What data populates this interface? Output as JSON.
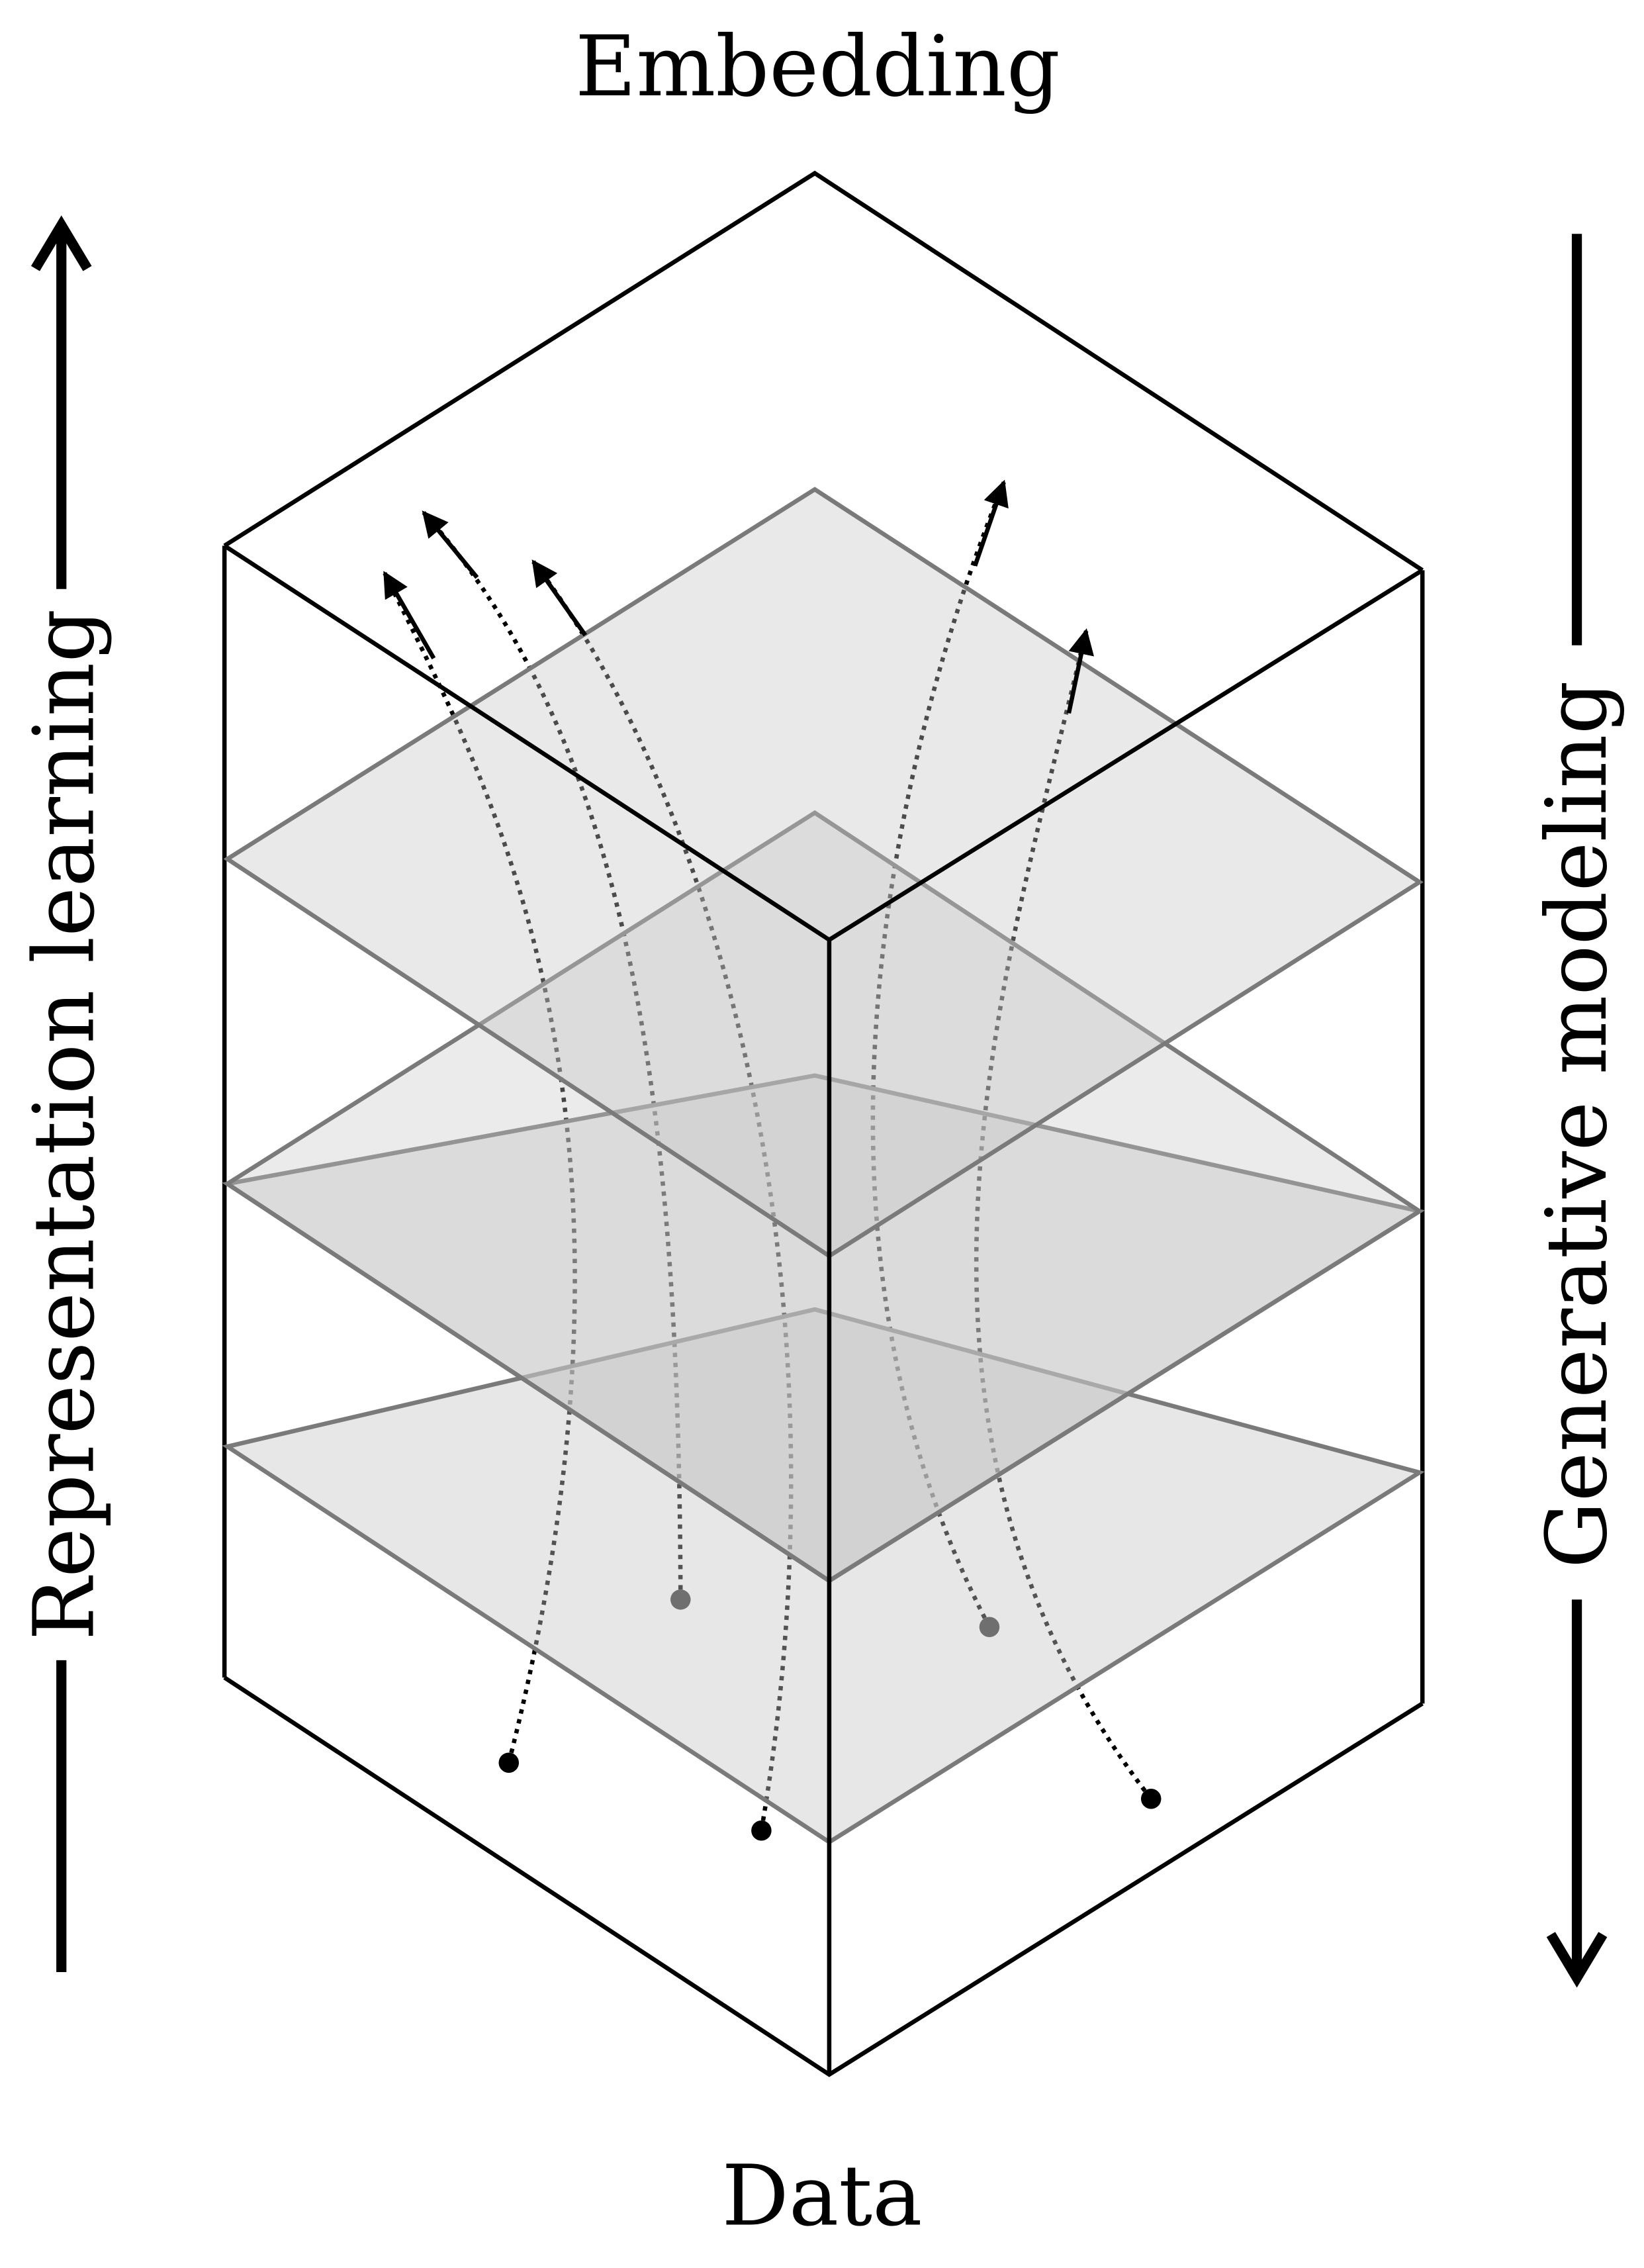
{
  "labels": {
    "top": "Embedding",
    "bottom": "Data",
    "left": "Representation learning",
    "right": "Generative modeling"
  },
  "colors": {
    "ink": "#000000",
    "plane_fill": "#c8c8c8",
    "plane_edge": "#777777",
    "hidden_trajectory": "#6f6f6f"
  }
}
